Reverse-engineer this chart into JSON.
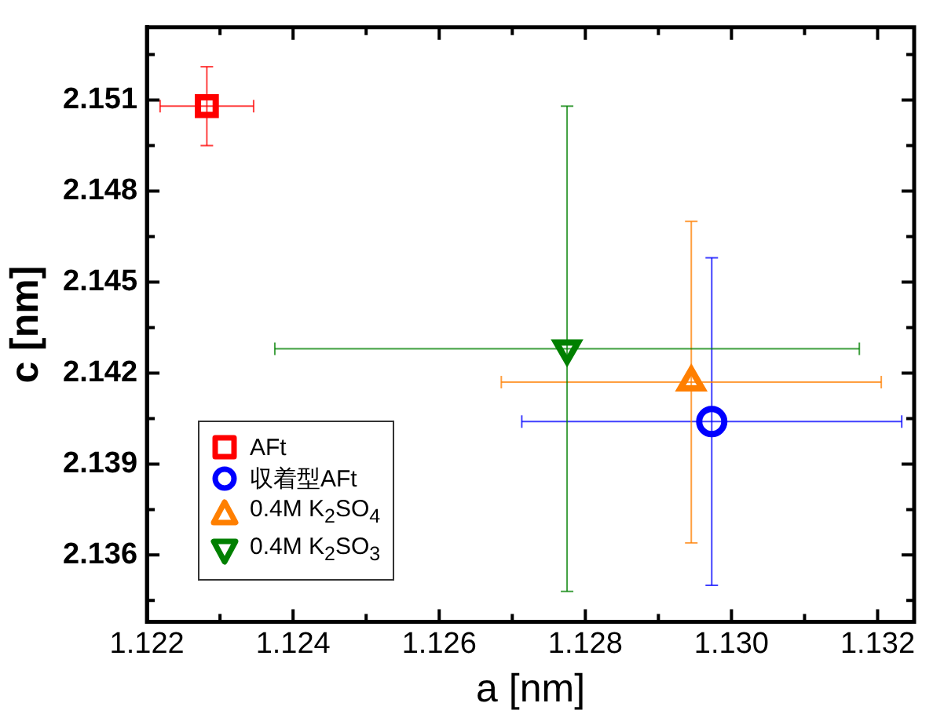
{
  "chart_data": {
    "type": "scatter",
    "xlabel": "a [nm]",
    "ylabel": "c [nm]",
    "xlim": [
      1.122,
      1.1325
    ],
    "ylim": [
      2.1338,
      2.1534
    ],
    "xticks": [
      1.122,
      1.124,
      1.126,
      1.128,
      {
        "value": 1.13,
        "label": "1.130"
      },
      1.132
    ],
    "yticks": [
      2.136,
      2.139,
      2.142,
      2.145,
      2.148,
      2.151
    ],
    "grid": false,
    "legend": "bottom left",
    "series": [
      {
        "name": "AFt",
        "color": "#ff0000",
        "marker": "square",
        "x": [
          1.12282
        ],
        "values": [
          2.1508
        ],
        "errors": [
          0.0013
        ],
        "xerrors": [
          0.00064
        ]
      },
      {
        "name": "収着型AFt",
        "color": "#0000ff",
        "marker": "circle",
        "x": [
          1.12973
        ],
        "values": [
          2.1404
        ],
        "errors": [
          0.0054
        ],
        "xerrors": [
          0.0026
        ]
      },
      {
        "name": "0.4M K$_{2}$SO$_{4}$",
        "color": "#ff7f00",
        "marker": "triangle",
        "x": [
          1.12945
        ],
        "values": [
          2.1417
        ],
        "errors": [
          0.0053
        ],
        "xerrors": [
          0.0026
        ]
      },
      {
        "name": "0.4M K$_{2}$SO$_{3}$",
        "color": "#008000",
        "marker": "triangle_down",
        "x": [
          1.12775
        ],
        "values": [
          2.1428
        ],
        "errors": [
          0.008
        ],
        "xerrors": [
          0.004
        ]
      }
    ]
  }
}
